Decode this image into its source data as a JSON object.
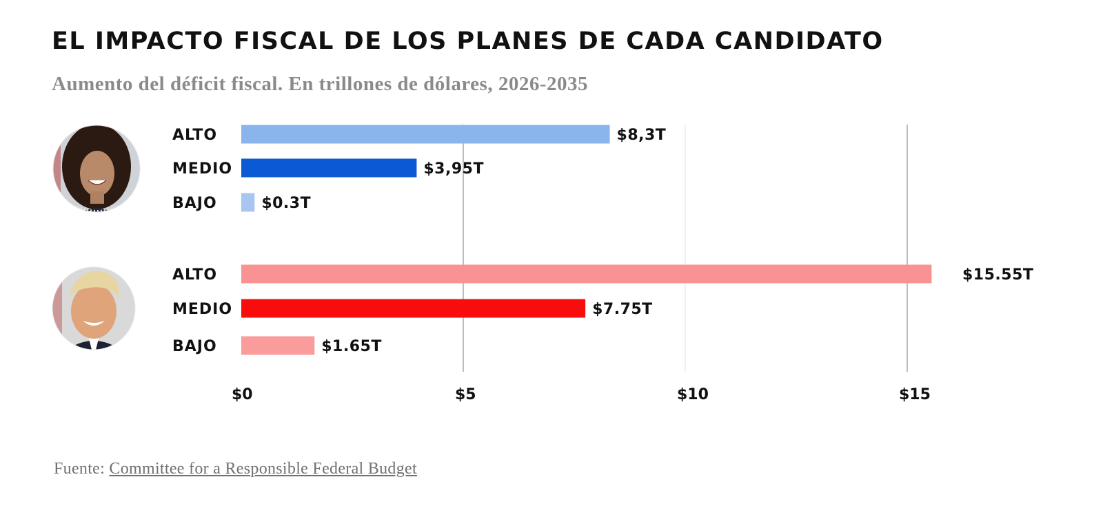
{
  "header": {
    "title": "EL IMPACTO FISCAL DE LOS PLANES DE CADA CANDIDATO",
    "subtitle": "Aumento del déficit fiscal. En trillones de dólares, 2026-2035"
  },
  "footer": {
    "prefix": "Fuente:",
    "link_text": "Committee for a Responsible Federal Budget"
  },
  "chart_data": {
    "type": "bar",
    "orientation": "horizontal",
    "xlim": [
      0,
      15.5
    ],
    "x_ticks": [
      0,
      5,
      10,
      15
    ],
    "x_tick_labels": [
      "$0",
      "$5",
      "$10",
      "$15"
    ],
    "grid": true,
    "groups": [
      {
        "candidate_portrait": "photo-portrait-candidate-1",
        "bars": [
          {
            "category": "ALTO",
            "value": 8.3,
            "label": "$8,3T",
            "color": "#8ab4ec"
          },
          {
            "category": "MEDIO",
            "value": 3.95,
            "label": "$3,95T",
            "color": "#0a5ad6"
          },
          {
            "category": "BAJO",
            "value": 0.3,
            "label": "$0.3T",
            "color": "#a9c6f0"
          }
        ]
      },
      {
        "candidate_portrait": "photo-portrait-candidate-2",
        "bars": [
          {
            "category": "ALTO",
            "value": 15.55,
            "label": "$15.55T",
            "color": "#f99393"
          },
          {
            "category": "MEDIO",
            "value": 7.75,
            "label": "$7.75T",
            "color": "#f80c0c"
          },
          {
            "category": "BAJO",
            "value": 1.65,
            "label": "$1.65T",
            "color": "#fa9c9c"
          }
        ]
      }
    ]
  }
}
